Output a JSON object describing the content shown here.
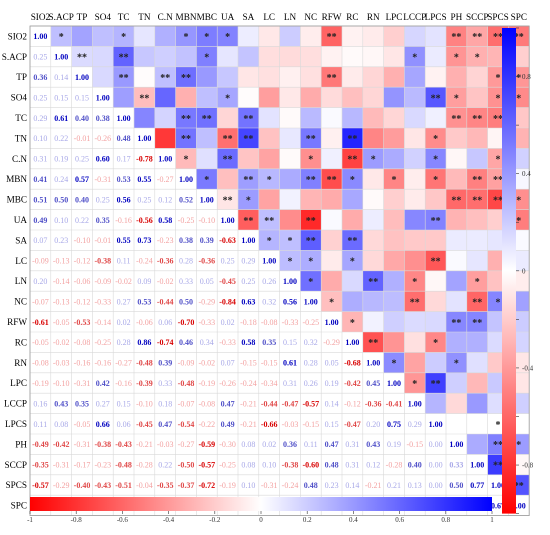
{
  "chart_data": {
    "type": "heatmap",
    "title": "",
    "variables": [
      "SIO2",
      "S.ACP",
      "TP",
      "SO4",
      "TC",
      "TN",
      "C.N",
      "MBN",
      "MBC",
      "UA",
      "SA",
      "LC",
      "LN",
      "NC",
      "RFW",
      "RC",
      "RN",
      "LPC",
      "LCCP",
      "LPCS",
      "PH",
      "SCCP",
      "SPCS",
      "SPC"
    ],
    "lower_values": [
      [],
      [
        0.25
      ],
      [
        0.36,
        0.14
      ],
      [
        0.25,
        0.15,
        0.15
      ],
      [
        0.29,
        0.61,
        0.4,
        0.38
      ],
      [
        0.1,
        0.22,
        -0.01,
        -0.26,
        0.48
      ],
      [
        0.31,
        0.19,
        0.25,
        0.6,
        0.17,
        -0.78
      ],
      [
        0.41,
        0.24,
        0.57,
        -0.31,
        0.53,
        0.55,
        -0.27
      ],
      [
        0.51,
        0.5,
        0.4,
        0.25,
        0.56,
        0.25,
        0.12,
        0.52
      ],
      [
        0.49,
        0.1,
        0.22,
        0.35,
        -0.16,
        -0.56,
        0.58,
        -0.25,
        -0.1
      ],
      [
        0.07,
        0.23,
        -0.1,
        -0.01,
        0.55,
        0.73,
        -0.23,
        0.38,
        0.39,
        -0.63
      ],
      [
        -0.09,
        -0.13,
        -0.12,
        -0.38,
        0.11,
        -0.24,
        -0.36,
        0.28,
        -0.36,
        0.25,
        0.29
      ],
      [
        0.2,
        -0.14,
        -0.06,
        -0.09,
        -0.02,
        0.09,
        -0.02,
        0.33,
        0.05,
        -0.45,
        0.25,
        0.26
      ],
      [
        -0.07,
        -0.13,
        -0.12,
        -0.33,
        0.27,
        0.53,
        -0.44,
        0.5,
        -0.29,
        -0.84,
        0.63,
        0.32,
        0.56
      ],
      [
        -0.61,
        -0.05,
        -0.53,
        -0.14,
        0.02,
        -0.06,
        0.06,
        -0.7,
        -0.33,
        0.02,
        -0.18,
        -0.08,
        -0.33,
        -0.25
      ],
      [
        -0.05,
        -0.02,
        -0.08,
        -0.25,
        0.28,
        0.86,
        -0.74,
        0.46,
        0.34,
        -0.33,
        0.58,
        0.35,
        0.15,
        0.32,
        -0.29
      ],
      [
        -0.08,
        -0.03,
        -0.16,
        -0.16,
        -0.27,
        -0.48,
        0.39,
        -0.09,
        -0.02,
        0.07,
        -0.15,
        -0.15,
        0.61,
        0.28,
        0.05,
        -0.68
      ],
      [
        -0.19,
        -0.1,
        -0.31,
        0.42,
        -0.16,
        -0.39,
        0.33,
        -0.48,
        -0.19,
        -0.26,
        -0.24,
        -0.34,
        0.31,
        0.26,
        0.19,
        -0.42,
        0.45
      ],
      [
        0.16,
        0.43,
        0.35,
        0.27,
        0.15,
        -0.1,
        0.18,
        -0.07,
        -0.08,
        0.47,
        -0.21,
        -0.44,
        -0.47,
        -0.57,
        0.14,
        -0.12,
        -0.36,
        -0.41
      ],
      [
        0.11,
        0.08,
        -0.05,
        0.66,
        0.06,
        -0.45,
        0.47,
        -0.54,
        -0.22,
        0.49,
        -0.21,
        -0.66,
        -0.03,
        -0.15,
        0.15,
        -0.47,
        0.2,
        0.75,
        0.29
      ],
      [
        -0.49,
        -0.42,
        -0.31,
        -0.38,
        -0.43,
        -0.21,
        -0.03,
        -0.27,
        -0.59,
        -0.3,
        0.08,
        0.02,
        0.36,
        0.11,
        0.47,
        0.31,
        0.43,
        0.19,
        -0.15
      ],
      [
        -0.35,
        -0.31,
        -0.17,
        -0.23,
        -0.48,
        -0.28,
        0.22,
        -0.5,
        -0.57,
        -0.25,
        0.08,
        0.1,
        -0.38,
        -0.6,
        0.48,
        0.31,
        0.12,
        -0.28,
        0.4
      ],
      [
        -0.57,
        -0.29,
        -0.4,
        -0.43,
        -0.51,
        -0.04,
        -0.35,
        -0.37,
        -0.72,
        -0.19,
        0.1,
        -0.31,
        -0.24,
        0.48,
        0.23,
        0.14,
        -0.21,
        0.21,
        0.13
      ],
      [
        -0.52,
        -0.19,
        -0.41,
        -0.46,
        -0.22,
        -0.3,
        0.18,
        0.03,
        -0.44,
        -0.51,
        0.02,
        0.08,
        -0.07,
        0.37,
        0.2,
        0.17,
        -0.1,
        -0.1,
        0.19
      ]
    ],
    "lower_tail_values": [
      [],
      [],
      [],
      [],
      [],
      [],
      [],
      [],
      [],
      [],
      [],
      [],
      [],
      [],
      [],
      [],
      [],
      [],
      [],
      [],
      [
        1.0
      ],
      [
        0.33,
        1.0
      ],
      [
        0.5,
        0.77,
        1.0
      ],
      [
        0.39,
        -0.03,
        0.67,
        1.0
      ]
    ],
    "upper_triangle": "significance stars (* / **) on colored cells",
    "upper_stars": [
      [],
      [
        "*"
      ],
      [
        "",
        "**"
      ],
      [
        "",
        "",
        ""
      ],
      [
        "*",
        "**",
        "**",
        ""
      ],
      [
        "",
        "",
        "",
        "**",
        ""
      ],
      [
        "",
        "",
        "**",
        "",
        "",
        ""
      ],
      [
        "*",
        "",
        "**",
        "",
        "**",
        "**",
        "*"
      ],
      [
        "*",
        "*",
        "",
        "",
        "**",
        "",
        "",
        "*"
      ],
      [
        "*",
        "",
        "",
        "*",
        "",
        "**",
        "**",
        "",
        "**"
      ],
      [
        "",
        "",
        "",
        "",
        "**",
        "**",
        "",
        "**",
        "*",
        "**"
      ],
      [
        "",
        "",
        "",
        "",
        "",
        "",
        "",
        "*",
        "",
        "**",
        "*"
      ],
      [
        "",
        "",
        "",
        "",
        "",
        "",
        "",
        "",
        "",
        "",
        "*",
        "*"
      ],
      [
        "",
        "",
        "",
        "",
        "",
        "**",
        "*",
        "**",
        "",
        "**",
        "**",
        "*",
        "*"
      ],
      [
        "**",
        "",
        "**",
        "",
        "",
        "",
        "",
        "**",
        "",
        "",
        "",
        "",
        "",
        "*"
      ],
      [
        "",
        "",
        "",
        "",
        "",
        "**",
        "**",
        "*",
        "",
        "",
        "**",
        "*",
        "",
        "",
        "*"
      ],
      [
        "",
        "",
        "",
        "",
        "",
        "",
        "*",
        "",
        "",
        "",
        "",
        "",
        "**",
        "",
        "",
        "**"
      ],
      [
        "",
        "",
        "",
        "",
        "",
        "",
        "",
        "*",
        "",
        "",
        "",
        "",
        "",
        "",
        "",
        "",
        "*"
      ],
      [
        "",
        "*",
        "",
        "",
        "",
        "",
        "",
        "",
        "",
        "",
        "",
        "",
        "*",
        "**",
        "",
        "",
        "",
        "*"
      ],
      [
        "",
        "",
        "",
        "**",
        "",
        "*",
        "*",
        "*",
        "",
        "**",
        "",
        "**",
        "",
        "",
        "",
        "*",
        "",
        "**",
        ""
      ],
      [
        "**",
        "*",
        "",
        "*",
        "**",
        "",
        "",
        "",
        "**",
        "",
        "",
        "",
        "",
        "",
        "**",
        "",
        "*",
        "",
        ""
      ],
      [
        "**",
        "*",
        "",
        "",
        "**",
        "",
        "",
        "**",
        "**",
        "",
        "",
        "",
        "*",
        "**",
        "**",
        "",
        "",
        "",
        ""
      ],
      [
        "**",
        "",
        "*",
        "*",
        "**",
        "",
        "*",
        "**",
        "**",
        "",
        "",
        "",
        "",
        "*",
        "",
        "",
        "",
        "",
        "",
        "*",
        "**",
        "**"
      ],
      [
        "**",
        "",
        "*",
        "*",
        "",
        "",
        "",
        "",
        "*",
        "*",
        "",
        "",
        "",
        "",
        "",
        "",
        "",
        "",
        "",
        "",
        "*",
        "",
        "**"
      ]
    ],
    "colorbar": {
      "min": -1,
      "max": 1,
      "colors": [
        "#ff0000",
        "#ffffff",
        "#0000ff"
      ],
      "ticks": [
        "-1",
        "-0.8",
        "-0.6",
        "-0.4",
        "-0.2",
        "0",
        "0.2",
        "0.4",
        "0.6",
        "0.8",
        "1"
      ]
    }
  }
}
